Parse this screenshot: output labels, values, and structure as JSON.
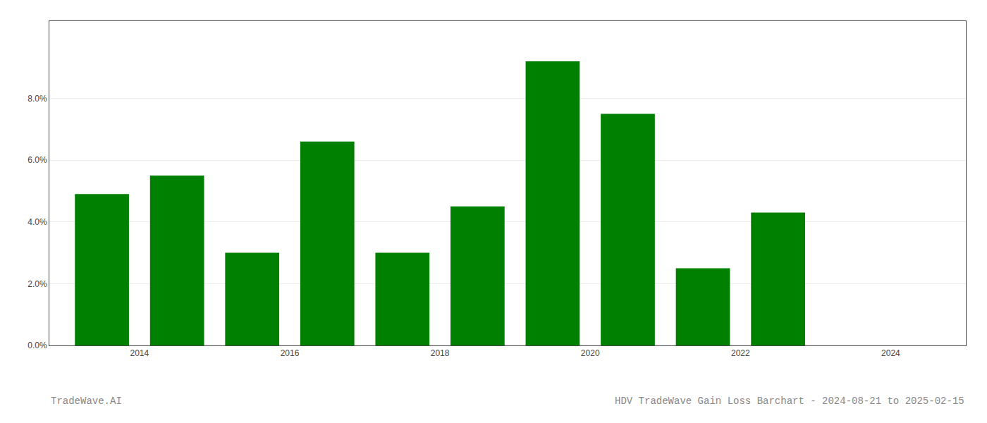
{
  "chart_data": {
    "type": "bar",
    "x": [
      2013.5,
      2014.5,
      2015.5,
      2016.5,
      2017.5,
      2018.5,
      2019.5,
      2020.5,
      2021.5,
      2022.5
    ],
    "values": [
      0.049,
      0.055,
      0.03,
      0.066,
      0.03,
      0.045,
      0.092,
      0.075,
      0.025,
      0.043
    ],
    "color": "#008000",
    "xlim": [
      2012.8,
      2025.0
    ],
    "xticks": [
      2014,
      2016,
      2018,
      2020,
      2022,
      2024
    ],
    "ylim": [
      0,
      0.105
    ],
    "yticks": [
      {
        "value": 0.0,
        "label": "0.0%"
      },
      {
        "value": 0.02,
        "label": "2.0%"
      },
      {
        "value": 0.04,
        "label": "4.0%"
      },
      {
        "value": 0.06,
        "label": "6.0%"
      },
      {
        "value": 0.08,
        "label": "8.0%"
      }
    ],
    "grid": true,
    "annotations": [
      "TradeWave.AI",
      "HDV TradeWave Gain Loss Barchart - 2024-08-21 to 2025-02-15"
    ]
  }
}
